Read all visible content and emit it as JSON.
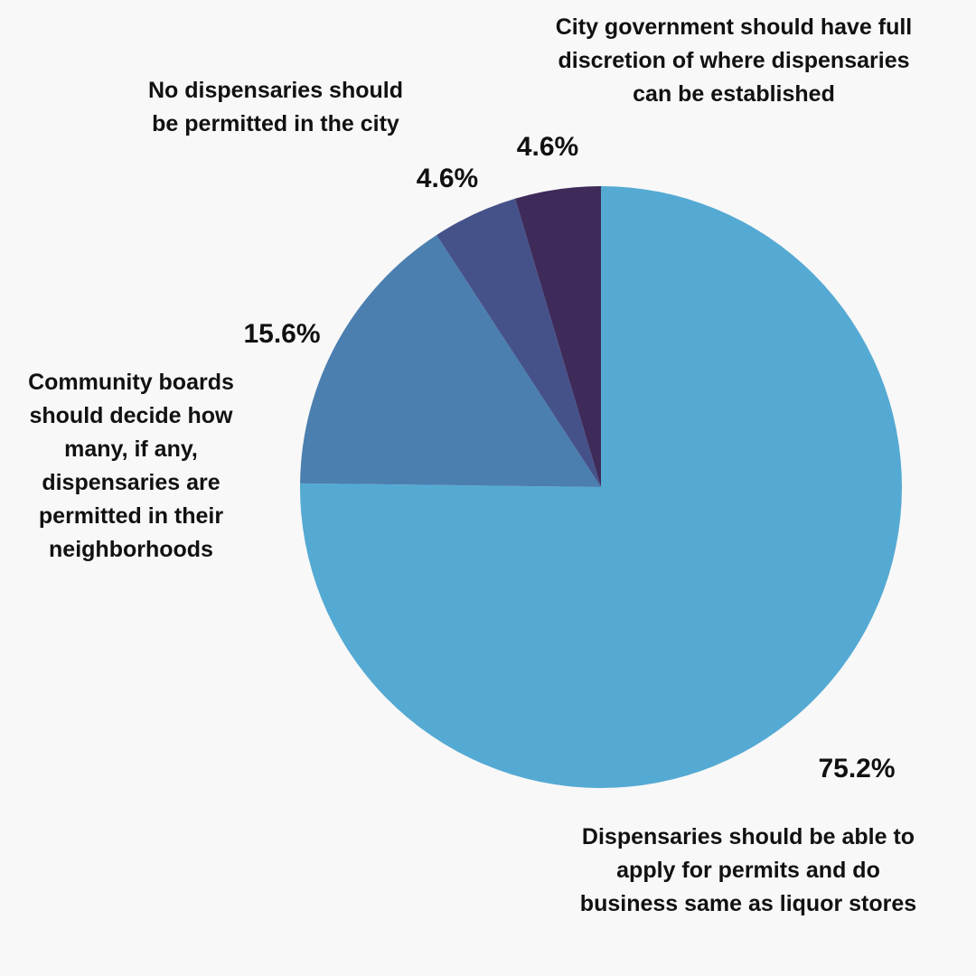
{
  "chart_data": {
    "type": "pie",
    "categories": [
      "Dispensaries should be able to apply for permits and do business same as liquor stores",
      "Community boards should decide how many, if any, dispensaries are permitted in their neighborhoods",
      "No dispensaries should be permitted in the city",
      "City government should have full discretion of where dispensaries can be established"
    ],
    "values": [
      75.2,
      15.6,
      4.6,
      4.6
    ],
    "value_labels": [
      "75.2%",
      "15.6%",
      "4.6%",
      "4.6%"
    ],
    "colors": [
      "#55aad3",
      "#4a7fb0",
      "#45528a",
      "#3e2b5a"
    ]
  }
}
